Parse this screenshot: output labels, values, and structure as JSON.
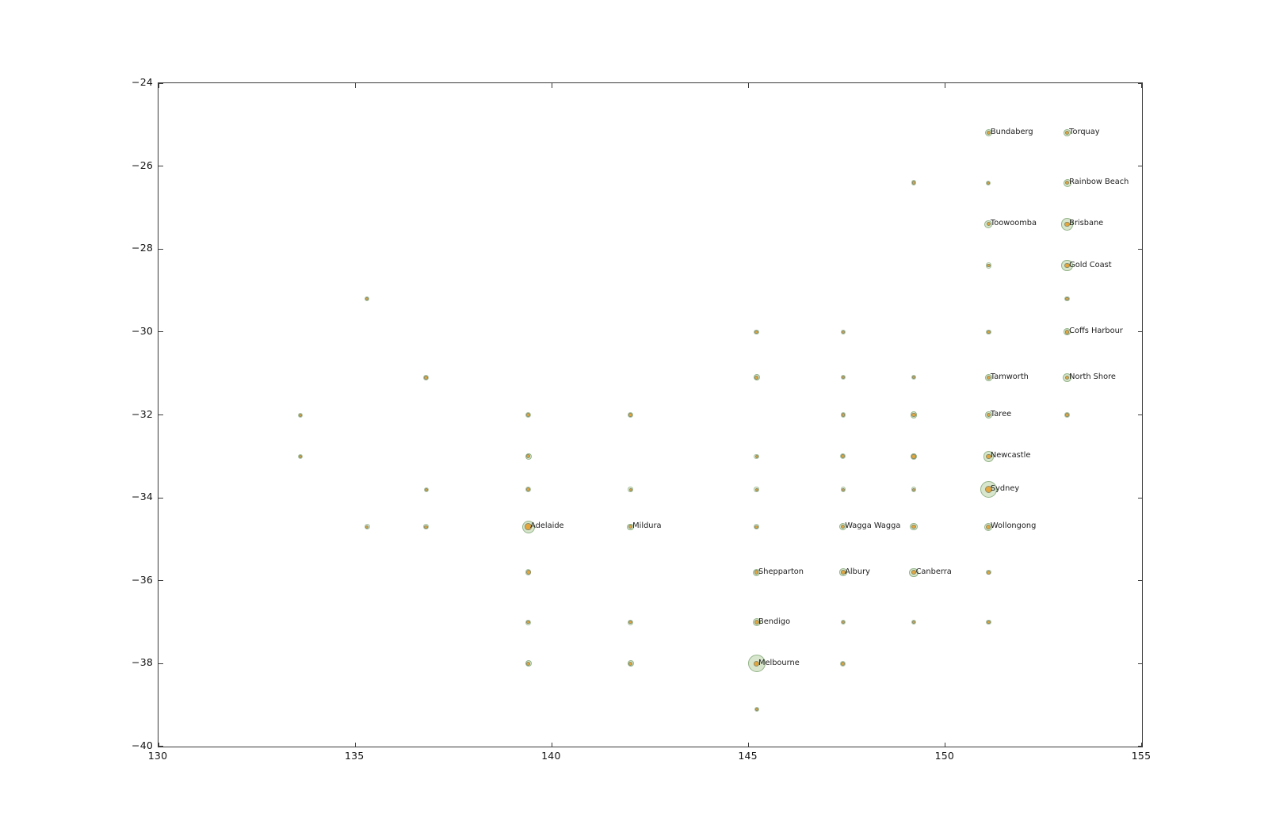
{
  "figure": {
    "background": "#ffffff"
  },
  "chart_data": {
    "type": "scatter",
    "title": "",
    "subtitle": "",
    "xlabel": "",
    "ylabel": "",
    "xlim": [
      130,
      155
    ],
    "ylim": [
      -40,
      -24
    ],
    "grid": false,
    "legend": null,
    "xtick_values": [
      130,
      135,
      140,
      145,
      150,
      155
    ],
    "xtick_labels": [
      "130",
      "135",
      "140",
      "145",
      "150",
      "155"
    ],
    "ytick_values": [
      -24,
      -26,
      -28,
      -30,
      -32,
      -34,
      -36,
      -38,
      -40
    ],
    "ytick_labels": [
      "−24",
      "−26",
      "−28",
      "−30",
      "−32",
      "−34",
      "−36",
      "−38",
      "−40"
    ],
    "marker_style": {
      "halo_fill": "#d5e5ca",
      "halo_edge": "#8fb083",
      "dot_fill": "#e5a63c",
      "dot_edge": "#8c8c66",
      "axis_color": "#3a3a3a",
      "label_color": "#1c1c1c"
    },
    "points": [
      {
        "lon": 133.6,
        "lat": -32.0,
        "halo": 3.0,
        "dot": 2.0
      },
      {
        "lon": 133.6,
        "lat": -33.0,
        "halo": 3.0,
        "dot": 2.0
      },
      {
        "lon": 135.3,
        "lat": -29.2,
        "halo": 3.0,
        "dot": 2.0
      },
      {
        "lon": 135.3,
        "lat": -34.7,
        "halo": 3.5,
        "dot": 2.2
      },
      {
        "lon": 136.8,
        "lat": -31.1,
        "halo": 3.5,
        "dot": 2.2
      },
      {
        "lon": 136.8,
        "lat": -33.8,
        "halo": 3.0,
        "dot": 2.0
      },
      {
        "lon": 136.8,
        "lat": -34.7,
        "halo": 3.3,
        "dot": 2.1
      },
      {
        "lon": 139.4,
        "lat": -32.0,
        "halo": 3.8,
        "dot": 2.4
      },
      {
        "lon": 139.4,
        "lat": -33.0,
        "halo": 4.0,
        "dot": 2.5
      },
      {
        "lon": 139.4,
        "lat": -33.8,
        "halo": 3.5,
        "dot": 2.4
      },
      {
        "lon": 139.4,
        "lat": -34.7,
        "halo": 8.0,
        "dot": 4.3,
        "label": "Adelaide"
      },
      {
        "lon": 139.4,
        "lat": -35.8,
        "halo": 3.8,
        "dot": 3.0
      },
      {
        "lon": 139.4,
        "lat": -37.0,
        "halo": 3.5,
        "dot": 2.4
      },
      {
        "lon": 139.4,
        "lat": -38.0,
        "halo": 4.0,
        "dot": 2.6
      },
      {
        "lon": 142.0,
        "lat": -32.0,
        "halo": 3.8,
        "dot": 2.3
      },
      {
        "lon": 142.0,
        "lat": -33.8,
        "halo": 3.2,
        "dot": 2.0
      },
      {
        "lon": 142.0,
        "lat": -34.7,
        "halo": 4.2,
        "dot": 2.5,
        "label": "Mildura"
      },
      {
        "lon": 142.0,
        "lat": -37.0,
        "halo": 3.5,
        "dot": 2.3
      },
      {
        "lon": 142.0,
        "lat": -38.0,
        "halo": 4.0,
        "dot": 2.5
      },
      {
        "lon": 145.2,
        "lat": -30.0,
        "halo": 3.2,
        "dot": 2.2
      },
      {
        "lon": 145.2,
        "lat": -31.1,
        "halo": 4.0,
        "dot": 2.5
      },
      {
        "lon": 145.2,
        "lat": -33.0,
        "halo": 3.2,
        "dot": 2.0
      },
      {
        "lon": 145.2,
        "lat": -33.8,
        "halo": 3.2,
        "dot": 2.0
      },
      {
        "lon": 145.2,
        "lat": -34.7,
        "halo": 3.5,
        "dot": 2.2
      },
      {
        "lon": 145.2,
        "lat": -35.8,
        "halo": 4.5,
        "dot": 2.8,
        "label": "Shepparton"
      },
      {
        "lon": 145.2,
        "lat": -37.0,
        "halo": 5.0,
        "dot": 3.0,
        "label": "Bendigo"
      },
      {
        "lon": 145.2,
        "lat": -38.0,
        "halo": 11.0,
        "dot": 3.6,
        "label": "Melbourne"
      },
      {
        "lon": 145.2,
        "lat": -39.1,
        "halo": 3.0,
        "dot": 2.0
      },
      {
        "lon": 147.4,
        "lat": -30.0,
        "halo": 3.0,
        "dot": 2.2
      },
      {
        "lon": 147.4,
        "lat": -31.1,
        "halo": 3.0,
        "dot": 2.0
      },
      {
        "lon": 147.4,
        "lat": -32.0,
        "halo": 3.2,
        "dot": 2.2
      },
      {
        "lon": 147.4,
        "lat": -33.0,
        "halo": 3.5,
        "dot": 2.5
      },
      {
        "lon": 147.4,
        "lat": -33.8,
        "halo": 3.2,
        "dot": 2.0
      },
      {
        "lon": 147.4,
        "lat": -34.7,
        "halo": 4.5,
        "dot": 2.7,
        "label": "Wagga Wagga"
      },
      {
        "lon": 147.4,
        "lat": -35.8,
        "halo": 4.8,
        "dot": 2.8,
        "label": "Albury"
      },
      {
        "lon": 147.4,
        "lat": -37.0,
        "halo": 3.0,
        "dot": 2.0
      },
      {
        "lon": 147.4,
        "lat": -38.0,
        "halo": 3.5,
        "dot": 2.5
      },
      {
        "lon": 149.2,
        "lat": -26.4,
        "halo": 3.2,
        "dot": 2.2
      },
      {
        "lon": 149.2,
        "lat": -31.1,
        "halo": 3.0,
        "dot": 2.0
      },
      {
        "lon": 149.2,
        "lat": -32.0,
        "halo": 4.2,
        "dot": 2.7
      },
      {
        "lon": 149.2,
        "lat": -33.0,
        "halo": 4.2,
        "dot": 2.7
      },
      {
        "lon": 149.2,
        "lat": -33.8,
        "halo": 3.2,
        "dot": 2.0
      },
      {
        "lon": 149.2,
        "lat": -34.7,
        "halo": 4.7,
        "dot": 2.7
      },
      {
        "lon": 149.2,
        "lat": -35.8,
        "halo": 5.7,
        "dot": 2.8,
        "label": "Canberra"
      },
      {
        "lon": 149.2,
        "lat": -37.0,
        "halo": 3.0,
        "dot": 2.0
      },
      {
        "lon": 151.1,
        "lat": -25.2,
        "halo": 4.7,
        "dot": 2.4,
        "label": "Bundaberg"
      },
      {
        "lon": 151.1,
        "lat": -26.4,
        "halo": 3.0,
        "dot": 2.0
      },
      {
        "lon": 151.1,
        "lat": -27.4,
        "halo": 5.0,
        "dot": 2.4,
        "label": "Toowoomba"
      },
      {
        "lon": 151.1,
        "lat": -28.4,
        "halo": 3.8,
        "dot": 2.3
      },
      {
        "lon": 151.1,
        "lat": -30.0,
        "halo": 3.3,
        "dot": 2.3
      },
      {
        "lon": 151.1,
        "lat": -31.1,
        "halo": 4.4,
        "dot": 2.4,
        "label": "Tamworth"
      },
      {
        "lon": 151.1,
        "lat": -32.0,
        "halo": 4.4,
        "dot": 2.4,
        "label": "Taree"
      },
      {
        "lon": 151.1,
        "lat": -33.0,
        "halo": 6.7,
        "dot": 3.3,
        "label": "Newcastle"
      },
      {
        "lon": 151.1,
        "lat": -33.8,
        "halo": 10.7,
        "dot": 4.7,
        "label": "Sydney"
      },
      {
        "lon": 151.1,
        "lat": -34.7,
        "halo": 5.0,
        "dot": 3.0,
        "label": "Wollongong"
      },
      {
        "lon": 151.1,
        "lat": -35.8,
        "halo": 3.2,
        "dot": 2.3
      },
      {
        "lon": 151.1,
        "lat": -37.0,
        "halo": 3.2,
        "dot": 2.3
      },
      {
        "lon": 153.1,
        "lat": -25.2,
        "halo": 4.3,
        "dot": 2.4,
        "label": "Torquay"
      },
      {
        "lon": 153.1,
        "lat": -26.4,
        "halo": 5.0,
        "dot": 2.6,
        "label": "Rainbow Beach"
      },
      {
        "lon": 153.1,
        "lat": -27.4,
        "halo": 7.7,
        "dot": 3.3,
        "label": "Brisbane"
      },
      {
        "lon": 153.1,
        "lat": -28.4,
        "halo": 7.2,
        "dot": 3.3,
        "label": "Gold Coast"
      },
      {
        "lon": 153.1,
        "lat": -29.2,
        "halo": 3.3,
        "dot": 2.3
      },
      {
        "lon": 153.1,
        "lat": -30.0,
        "halo": 4.4,
        "dot": 2.7,
        "label": "Coffs Harbour"
      },
      {
        "lon": 153.1,
        "lat": -31.1,
        "halo": 5.7,
        "dot": 2.7,
        "label": "North Shore"
      },
      {
        "lon": 153.1,
        "lat": -32.0,
        "halo": 3.3,
        "dot": 2.3
      }
    ]
  }
}
